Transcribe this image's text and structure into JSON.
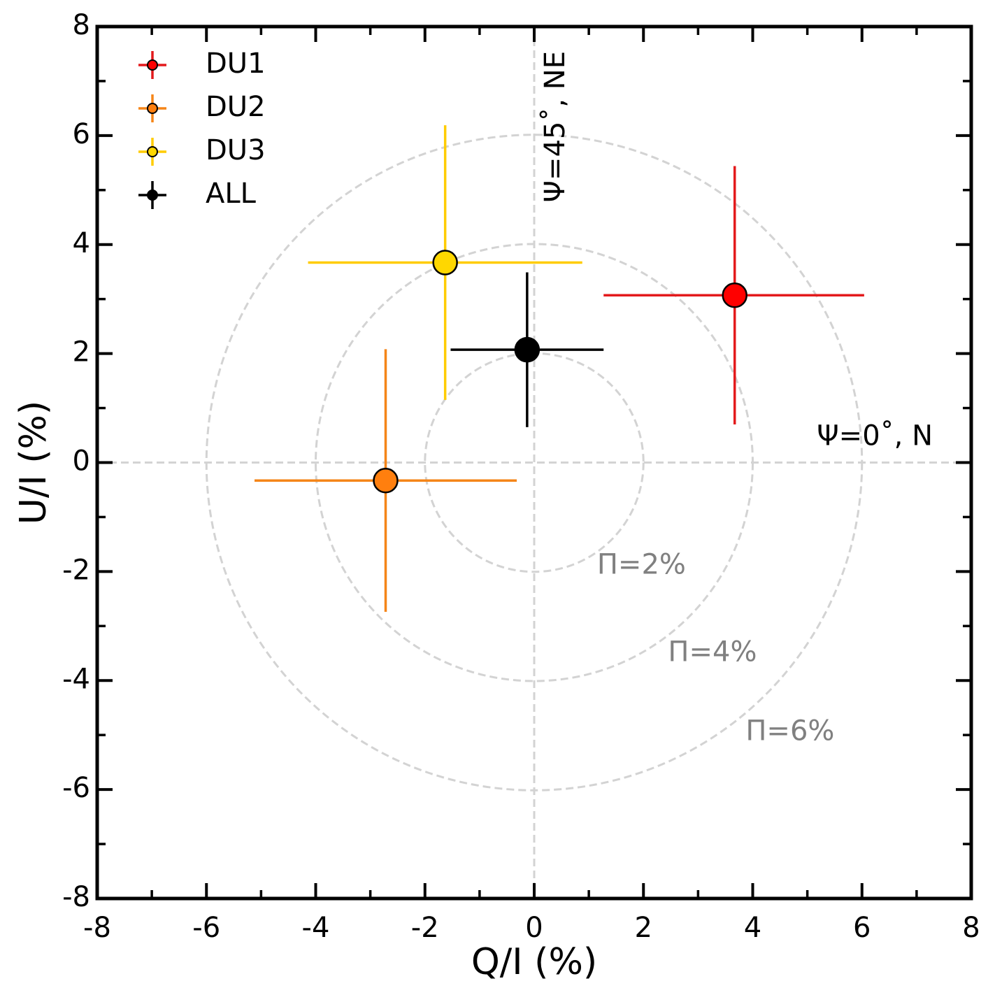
{
  "chart_data": {
    "type": "scatter",
    "title": "",
    "xlabel": "Q/I (%)",
    "ylabel": "U/I (%)",
    "xlim": [
      -8,
      8
    ],
    "ylim": [
      -8,
      8
    ],
    "major_ticks": [
      -8,
      -6,
      -4,
      -2,
      0,
      2,
      4,
      6,
      8
    ],
    "minor_ticks": [
      -7,
      -5,
      -3,
      -1,
      1,
      3,
      5,
      7
    ],
    "grid": false,
    "legend_position": "top-left",
    "series": [
      {
        "name": "DU1",
        "color": "#ff0000",
        "errcolor": "#e31a1c",
        "x": 3.67,
        "y": 3.07,
        "xerr": [
          2.4,
          2.37
        ],
        "yerr": [
          2.37,
          2.37
        ]
      },
      {
        "name": "DU2",
        "color": "#ff7f0e",
        "errcolor": "#f58518",
        "x": -2.72,
        "y": -0.33,
        "xerr": [
          2.4,
          2.4
        ],
        "yerr": [
          2.41,
          2.41
        ]
      },
      {
        "name": "DU3",
        "color": "#ffd700",
        "errcolor": "#ffcc00",
        "x": -1.63,
        "y": 3.67,
        "xerr": [
          2.51,
          2.51
        ],
        "yerr": [
          2.52,
          2.52
        ]
      },
      {
        "name": "ALL",
        "color": "#000000",
        "errcolor": "#000000",
        "x": -0.13,
        "y": 2.07,
        "xerr": [
          1.4,
          1.4
        ],
        "yerr": [
          1.42,
          1.42
        ]
      }
    ],
    "rings": [
      {
        "radius": 2,
        "label": "Π=2%",
        "label_x": 1.15,
        "label_y": -1.9
      },
      {
        "radius": 4,
        "label": "Π=4%",
        "label_x": 2.45,
        "label_y": -3.5
      },
      {
        "radius": 6,
        "label": "Π=6%",
        "label_x": 3.87,
        "label_y": -4.95
      }
    ],
    "reference_lines": [
      {
        "axis": "x",
        "value": 0,
        "label": "Ψ=45˚, NE"
      },
      {
        "axis": "y",
        "value": 0,
        "label": "Ψ=0˚, N"
      }
    ],
    "colors": {
      "ring": "#d3d3d3",
      "ring_label": "#808080",
      "axis": "#000000"
    }
  }
}
